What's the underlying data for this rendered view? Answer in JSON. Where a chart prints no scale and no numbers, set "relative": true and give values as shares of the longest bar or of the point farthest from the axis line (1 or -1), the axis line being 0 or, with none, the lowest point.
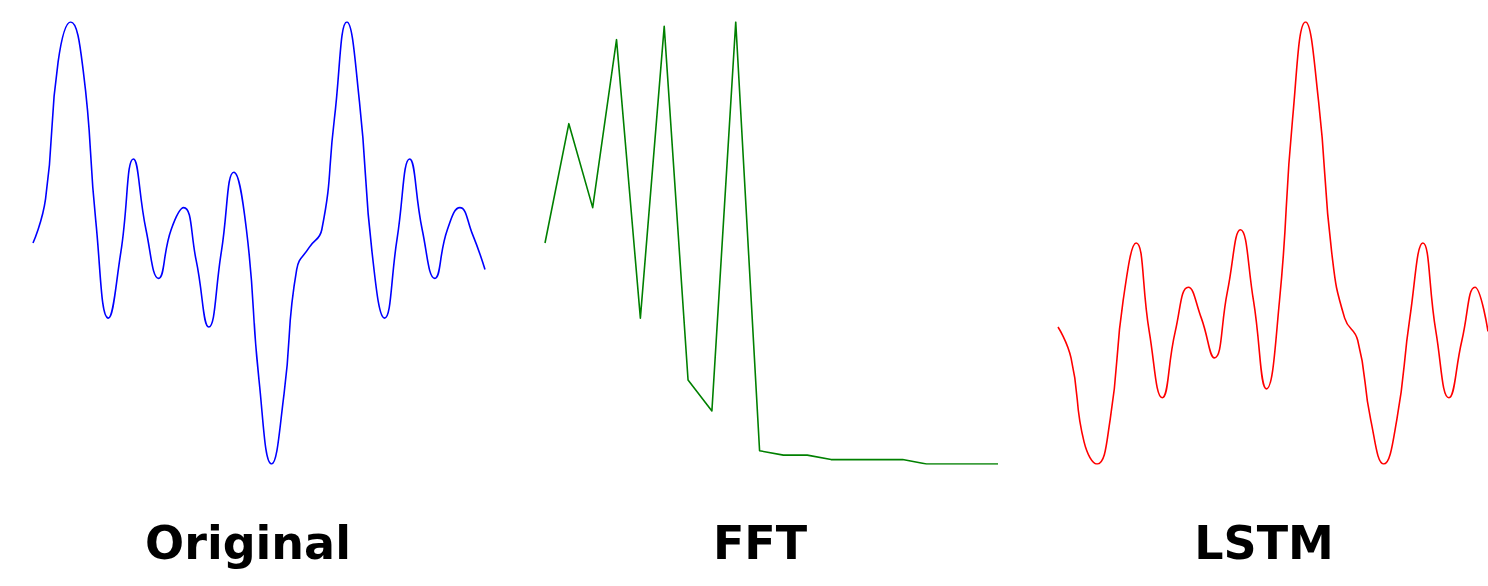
{
  "chart_data": [
    {
      "type": "line",
      "title": "Original",
      "relative": true,
      "categories": [
        null,
        null,
        null,
        null,
        null,
        null,
        null,
        null,
        null,
        null,
        null,
        null,
        null,
        null,
        null,
        null,
        null,
        null,
        null,
        null,
        null,
        null,
        null,
        null,
        null,
        null,
        null,
        null,
        null,
        null,
        null,
        null,
        null,
        null,
        null,
        null,
        null
      ],
      "series": [
        {
          "color": "#0000ff",
          "values": [
            0.5,
            0.6,
            0.91,
            1,
            0.89,
            0.55,
            0.33,
            0.48,
            0.69,
            0.53,
            0.42,
            0.53,
            0.58,
            0.46,
            0.31,
            0.48,
            0.66,
            0.53,
            0.19,
            0,
            0.16,
            0.44,
            0.49,
            0.53,
            0.78,
            1,
            0.82,
            0.48,
            0.33,
            0.51,
            0.69,
            0.53,
            0.42,
            0.53,
            0.58,
            0.52,
            0.44
          ]
        }
      ]
    },
    {
      "type": "line",
      "title": "FFT",
      "relative": true,
      "categories": [
        null,
        null,
        null,
        null,
        null,
        null,
        null,
        null,
        null,
        null,
        null,
        null,
        null,
        null,
        null,
        null,
        null,
        null,
        null,
        null
      ],
      "series": [
        {
          "color": "#008000",
          "values": [
            0.5,
            0.77,
            0.58,
            0.96,
            0.33,
            0.99,
            0.19,
            0.12,
            1,
            0.03,
            0.02,
            0.02,
            0.01,
            0.01,
            0.01,
            0.01,
            0,
            0,
            0,
            0
          ]
        }
      ]
    },
    {
      "type": "line",
      "title": "LSTM",
      "relative": true,
      "categories": [
        null,
        null,
        null,
        null,
        null,
        null,
        null,
        null,
        null,
        null,
        null,
        null,
        null,
        null,
        null,
        null,
        null,
        null,
        null,
        null,
        null,
        null,
        null,
        null,
        null,
        null,
        null,
        null,
        null,
        null,
        null,
        null,
        null,
        null
      ],
      "series": [
        {
          "color": "#ff0000",
          "values": [
            0.31,
            0.24,
            0.05,
            0,
            0.1,
            0.37,
            0.5,
            0.3,
            0.15,
            0.3,
            0.4,
            0.33,
            0.24,
            0.39,
            0.53,
            0.37,
            0.17,
            0.37,
            0.78,
            1,
            0.82,
            0.48,
            0.33,
            0.28,
            0.1,
            0,
            0.1,
            0.33,
            0.5,
            0.3,
            0.15,
            0.28,
            0.4,
            0.3
          ]
        }
      ]
    }
  ]
}
